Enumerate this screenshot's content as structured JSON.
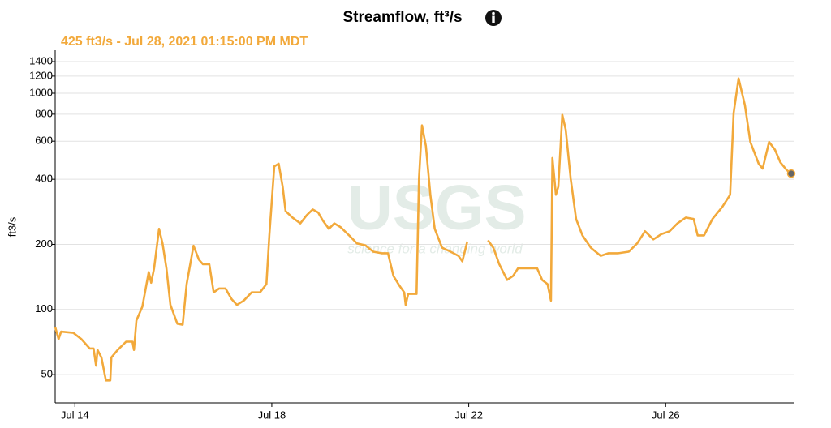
{
  "chart_data": {
    "type": "line",
    "title": "Streamflow, ft³/s",
    "subtitle": "425 ft3/s - Jul 28, 2021 01:15:00 PM MDT",
    "y_label": "ft3/s",
    "watermark": "USGS",
    "watermark_tagline": "science for a changing world",
    "log_scale": true,
    "grid": true,
    "xlim": [
      13.6,
      28.6
    ],
    "xticks": [
      {
        "value": 14,
        "label": "Jul 14"
      },
      {
        "value": 18,
        "label": "Jul 18"
      },
      {
        "value": 22,
        "label": "Jul 22"
      },
      {
        "value": 26,
        "label": "Jul 26"
      }
    ],
    "ylim": [
      37,
      1580
    ],
    "yticks": [
      50,
      100,
      200,
      400,
      600,
      800,
      1000,
      1200,
      1400
    ],
    "series": [
      {
        "name": "Streamflow",
        "color": "#f2a93b",
        "x": [
          13.6,
          13.67,
          13.72,
          13.97,
          14.13,
          14.3,
          14.38,
          14.43,
          14.46,
          14.54,
          14.63,
          14.72,
          14.74,
          14.87,
          15.04,
          15.17,
          15.2,
          15.25,
          15.37,
          15.5,
          15.55,
          15.61,
          15.71,
          15.78,
          15.86,
          15.94,
          16.08,
          16.19,
          16.27,
          16.41,
          16.52,
          16.6,
          16.73,
          16.82,
          16.93,
          17.06,
          17.18,
          17.29,
          17.43,
          17.59,
          17.76,
          17.89,
          17.95,
          18.05,
          18.14,
          18.22,
          18.28,
          18.42,
          18.58,
          18.71,
          18.83,
          18.94,
          19.04,
          19.16,
          19.27,
          19.4,
          19.57,
          19.73,
          19.9,
          20.06,
          20.23,
          20.36,
          20.47,
          20.59,
          20.69,
          20.72,
          20.77,
          20.94,
          20.99,
          21.05,
          21.13,
          21.22,
          21.31,
          21.46,
          21.63,
          21.79,
          21.87,
          21.97,
          22.2,
          22.39,
          22.5,
          22.62,
          22.78,
          22.9,
          23.0,
          23.19,
          23.39,
          23.49,
          23.6,
          23.67,
          23.7,
          23.77,
          23.82,
          23.9,
          23.97,
          24.07,
          24.18,
          24.31,
          24.48,
          24.68,
          24.84,
          25.04,
          25.25,
          25.42,
          25.58,
          25.75,
          25.91,
          26.08,
          26.24,
          26.41,
          26.57,
          26.65,
          26.78,
          26.95,
          27.15,
          27.31,
          27.38,
          27.48,
          27.61,
          27.72,
          27.89,
          27.97,
          28.1,
          28.22,
          28.33,
          28.46,
          28.55
        ],
        "values": [
          83,
          73,
          79,
          78,
          73,
          66,
          66,
          55,
          65,
          60,
          47,
          47,
          60,
          65,
          71,
          71,
          65,
          89,
          103,
          149,
          133,
          155,
          236,
          202,
          155,
          105,
          86,
          85,
          131,
          197,
          170,
          162,
          162,
          120,
          125,
          125,
          112,
          105,
          110,
          120,
          120,
          131,
          220,
          459,
          472,
          370,
          285,
          266,
          250,
          273,
          290,
          281,
          257,
          236,
          250,
          240,
          220,
          202,
          198,
          185,
          182,
          182,
          143,
          129,
          120,
          105,
          118,
          118,
          403,
          710,
          570,
          339,
          236,
          193,
          185,
          177,
          167,
          206,
          null,
          209,
          193,
          162,
          137,
          143,
          155,
          155,
          155,
          137,
          131,
          110,
          502,
          339,
          370,
          794,
          679,
          403,
          262,
          220,
          193,
          177,
          182,
          182,
          185,
          202,
          230,
          211,
          223,
          230,
          250,
          266,
          262,
          220,
          220,
          262,
          298,
          339,
          808,
          1170,
          881,
          595,
          472,
          448,
          595,
          548,
          479,
          441,
          425
        ]
      }
    ]
  }
}
